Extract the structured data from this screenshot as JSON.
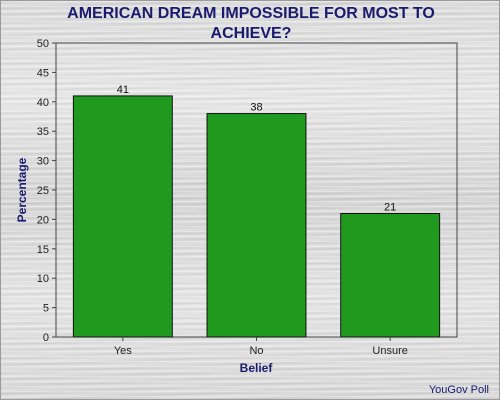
{
  "chart_data": {
    "type": "bar",
    "title": "AMERICAN DREAM IMPOSSIBLE FOR MOST TO ACHIEVE?",
    "xlabel": "Belief",
    "ylabel": "Percentage",
    "categories": [
      "Yes",
      "No",
      "Unsure"
    ],
    "values": [
      41,
      38,
      21
    ],
    "ylim": [
      0,
      50
    ],
    "yticks": [
      0,
      5,
      10,
      15,
      20,
      25,
      30,
      35,
      40,
      45,
      50
    ],
    "bar_color": "#1f9a1f",
    "grid": false,
    "legend": "none"
  },
  "source": "YouGov Poll"
}
